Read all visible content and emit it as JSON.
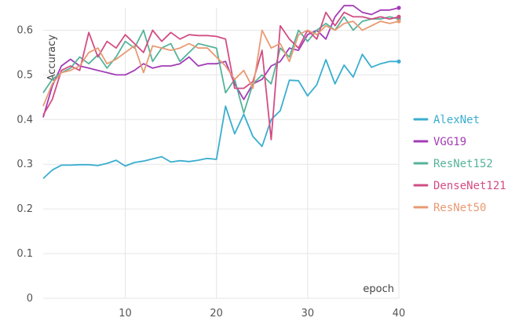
{
  "chart_data": {
    "type": "line",
    "title": "",
    "xlabel": "epoch",
    "ylabel": "Accuracy",
    "xlim": [
      1,
      40
    ],
    "ylim": [
      0,
      0.65
    ],
    "xticks": [
      10,
      20,
      30,
      40
    ],
    "yticks": [
      0,
      0.1,
      0.2,
      0.3,
      0.4,
      0.5,
      0.6
    ],
    "grid": true,
    "legend_position": "right",
    "x": [
      1,
      2,
      3,
      4,
      5,
      6,
      7,
      8,
      9,
      10,
      11,
      12,
      13,
      14,
      15,
      16,
      17,
      18,
      19,
      20,
      21,
      22,
      23,
      24,
      25,
      26,
      27,
      28,
      29,
      30,
      31,
      32,
      33,
      34,
      35,
      36,
      37,
      38,
      39,
      40
    ],
    "series": [
      {
        "name": "AlexNet",
        "color": "#3aaed0",
        "values": [
          0.268,
          0.287,
          0.298,
          0.298,
          0.299,
          0.299,
          0.297,
          0.302,
          0.309,
          0.296,
          0.304,
          0.307,
          0.312,
          0.317,
          0.305,
          0.308,
          0.306,
          0.309,
          0.313,
          0.311,
          0.43,
          0.368,
          0.412,
          0.362,
          0.34,
          0.4,
          0.42,
          0.488,
          0.487,
          0.453,
          0.478,
          0.534,
          0.48,
          0.522,
          0.495,
          0.546,
          0.517,
          0.525,
          0.53,
          0.53
        ]
      },
      {
        "name": "VGG19",
        "color": "#a33bb6",
        "values": [
          0.405,
          0.475,
          0.52,
          0.535,
          0.52,
          0.515,
          0.51,
          0.505,
          0.5,
          0.5,
          0.51,
          0.525,
          0.515,
          0.52,
          0.52,
          0.525,
          0.54,
          0.52,
          0.525,
          0.525,
          0.53,
          0.48,
          0.445,
          0.48,
          0.49,
          0.52,
          0.53,
          0.56,
          0.555,
          0.59,
          0.6,
          0.58,
          0.63,
          0.655,
          0.655,
          0.64,
          0.635,
          0.645,
          0.645,
          0.65
        ]
      },
      {
        "name": "ResNet152",
        "color": "#55b39a",
        "values": [
          0.46,
          0.49,
          0.505,
          0.515,
          0.54,
          0.525,
          0.545,
          0.515,
          0.54,
          0.575,
          0.56,
          0.6,
          0.53,
          0.56,
          0.57,
          0.53,
          0.55,
          0.57,
          0.565,
          0.56,
          0.46,
          0.49,
          0.415,
          0.48,
          0.5,
          0.48,
          0.56,
          0.54,
          0.6,
          0.575,
          0.6,
          0.615,
          0.6,
          0.63,
          0.6,
          0.62,
          0.625,
          0.625,
          0.63,
          0.625
        ]
      },
      {
        "name": "DenseNet121",
        "color": "#d24d84",
        "values": [
          0.41,
          0.445,
          0.51,
          0.52,
          0.51,
          0.595,
          0.54,
          0.575,
          0.56,
          0.59,
          0.57,
          0.55,
          0.6,
          0.575,
          0.595,
          0.58,
          0.59,
          0.588,
          0.588,
          0.586,
          0.58,
          0.47,
          0.47,
          0.485,
          0.555,
          0.355,
          0.61,
          0.58,
          0.56,
          0.6,
          0.58,
          0.64,
          0.61,
          0.64,
          0.63,
          0.63,
          0.625,
          0.63,
          0.625,
          0.63
        ]
      },
      {
        "name": "ResNet50",
        "color": "#e89a73",
        "values": [
          0.43,
          0.48,
          0.505,
          0.51,
          0.52,
          0.55,
          0.56,
          0.525,
          0.535,
          0.55,
          0.565,
          0.505,
          0.565,
          0.56,
          0.555,
          0.56,
          0.57,
          0.56,
          0.56,
          0.54,
          0.52,
          0.49,
          0.51,
          0.47,
          0.6,
          0.56,
          0.57,
          0.53,
          0.59,
          0.6,
          0.59,
          0.61,
          0.6,
          0.615,
          0.62,
          0.6,
          0.61,
          0.62,
          0.615,
          0.62
        ]
      }
    ]
  }
}
